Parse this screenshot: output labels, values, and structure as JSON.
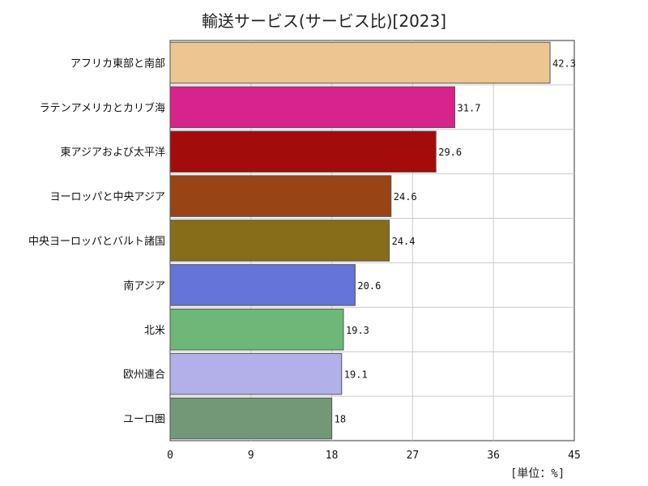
{
  "chart_data": {
    "type": "bar",
    "orientation": "horizontal",
    "title": "輸送サービス(サービス比)[2023]",
    "unit_label": "[単位：%]",
    "xlim": [
      0,
      45
    ],
    "xticks": [
      0,
      9,
      18,
      27,
      36,
      45
    ],
    "grid": true,
    "categories": [
      "アフリカ東部と南部",
      "ラテンアメリカとカリブ海",
      "東アジアおよび太平洋",
      "ヨーロッパと中央アジア",
      "中央ヨーロッパとバルト諸国",
      "南アジア",
      "北米",
      "欧州連合",
      "ユーロ圏"
    ],
    "values": [
      42.3,
      31.7,
      29.6,
      24.6,
      24.4,
      20.6,
      19.3,
      19.1,
      18
    ],
    "value_labels": [
      "42.3",
      "31.7",
      "29.6",
      "24.6",
      "24.4",
      "20.6",
      "19.3",
      "19.1",
      "18"
    ],
    "colors": [
      "#ecc590",
      "#d8228c",
      "#a40c0c",
      "#984414",
      "#876d1a",
      "#6574d8",
      "#6db878",
      "#b1b0e8",
      "#729878"
    ]
  }
}
